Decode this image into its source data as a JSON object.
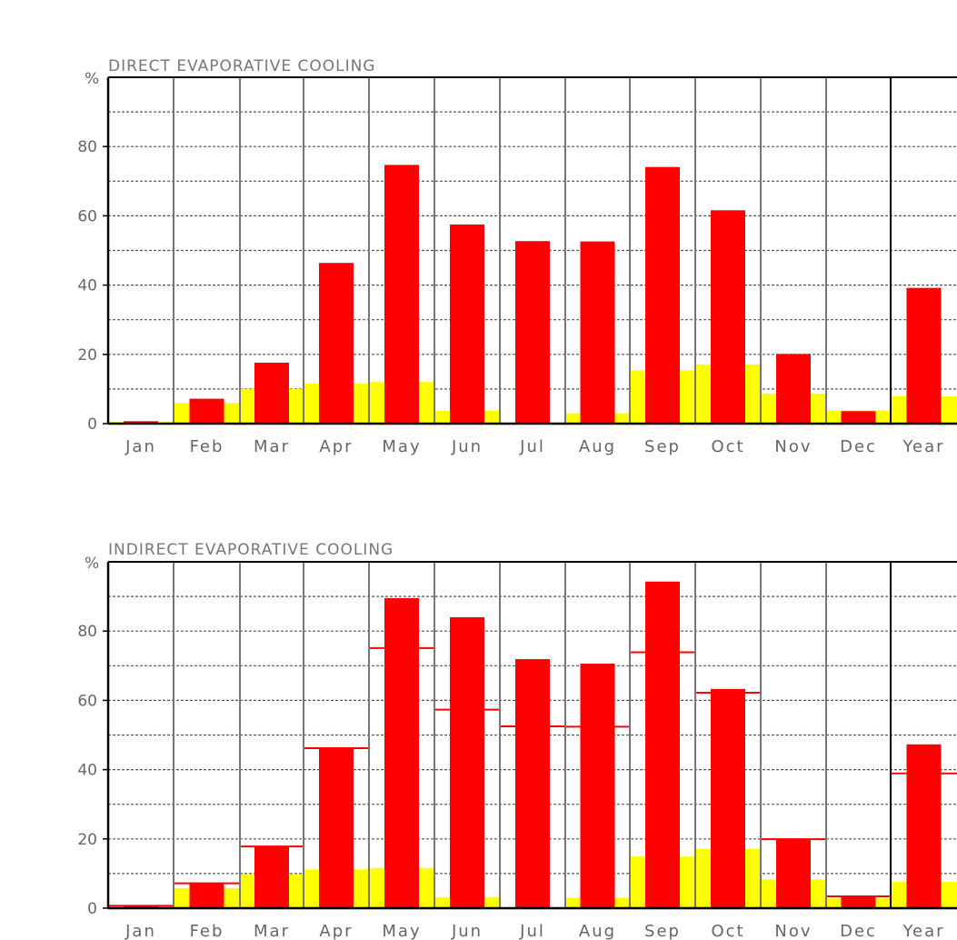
{
  "chart_data": [
    {
      "type": "bar",
      "title": "DIRECT EVAPORATIVE COOLING",
      "ylabel": "%",
      "ylim": [
        0,
        100
      ],
      "yticks": [
        "0",
        "20",
        "40",
        "60",
        "80"
      ],
      "grid": true,
      "categories": [
        "Jan",
        "Feb",
        "Mar",
        "Apr",
        "May",
        "Jun",
        "Jul",
        "Aug",
        "Sep",
        "Oct",
        "Nov",
        "Dec",
        "Year"
      ],
      "series": [
        {
          "color": "#ff0000",
          "values": [
            0.7,
            7.2,
            17.6,
            46.4,
            74.7,
            57.5,
            52.7,
            52.6,
            74.1,
            61.6,
            20.1,
            3.6,
            39.2
          ]
        },
        {
          "color": "#ffff00",
          "values": [
            0.5,
            6.0,
            10.0,
            11.6,
            12.0,
            3.7,
            0.3,
            3.0,
            15.4,
            17.1,
            8.7,
            3.8,
            7.9
          ]
        }
      ],
      "reference_values": []
    },
    {
      "type": "bar",
      "title": "INDIRECT EVAPORATIVE COOLING",
      "ylabel": "%",
      "ylim": [
        0,
        100
      ],
      "yticks": [
        "0",
        "20",
        "40",
        "60",
        "80"
      ],
      "grid": true,
      "categories": [
        "Jan",
        "Feb",
        "Mar",
        "Apr",
        "May",
        "Jun",
        "Jul",
        "Aug",
        "Sep",
        "Oct",
        "Nov",
        "Dec",
        "Year"
      ],
      "series": [
        {
          "color": "#ff0000",
          "values": [
            0.7,
            7.1,
            17.9,
            46.0,
            89.5,
            84.0,
            71.9,
            70.6,
            94.3,
            63.3,
            20.1,
            3.4,
            47.3
          ]
        },
        {
          "color": "#ffff00",
          "values": [
            0.5,
            5.8,
            9.8,
            11.2,
            11.6,
            3.2,
            0.3,
            3.0,
            14.9,
            17.1,
            8.3,
            2.8,
            7.6
          ]
        }
      ],
      "reference_values": [
        0.7,
        7.2,
        17.8,
        46.2,
        75.1,
        57.3,
        52.5,
        52.4,
        73.9,
        62.2,
        19.9,
        3.4,
        38.9
      ]
    }
  ]
}
